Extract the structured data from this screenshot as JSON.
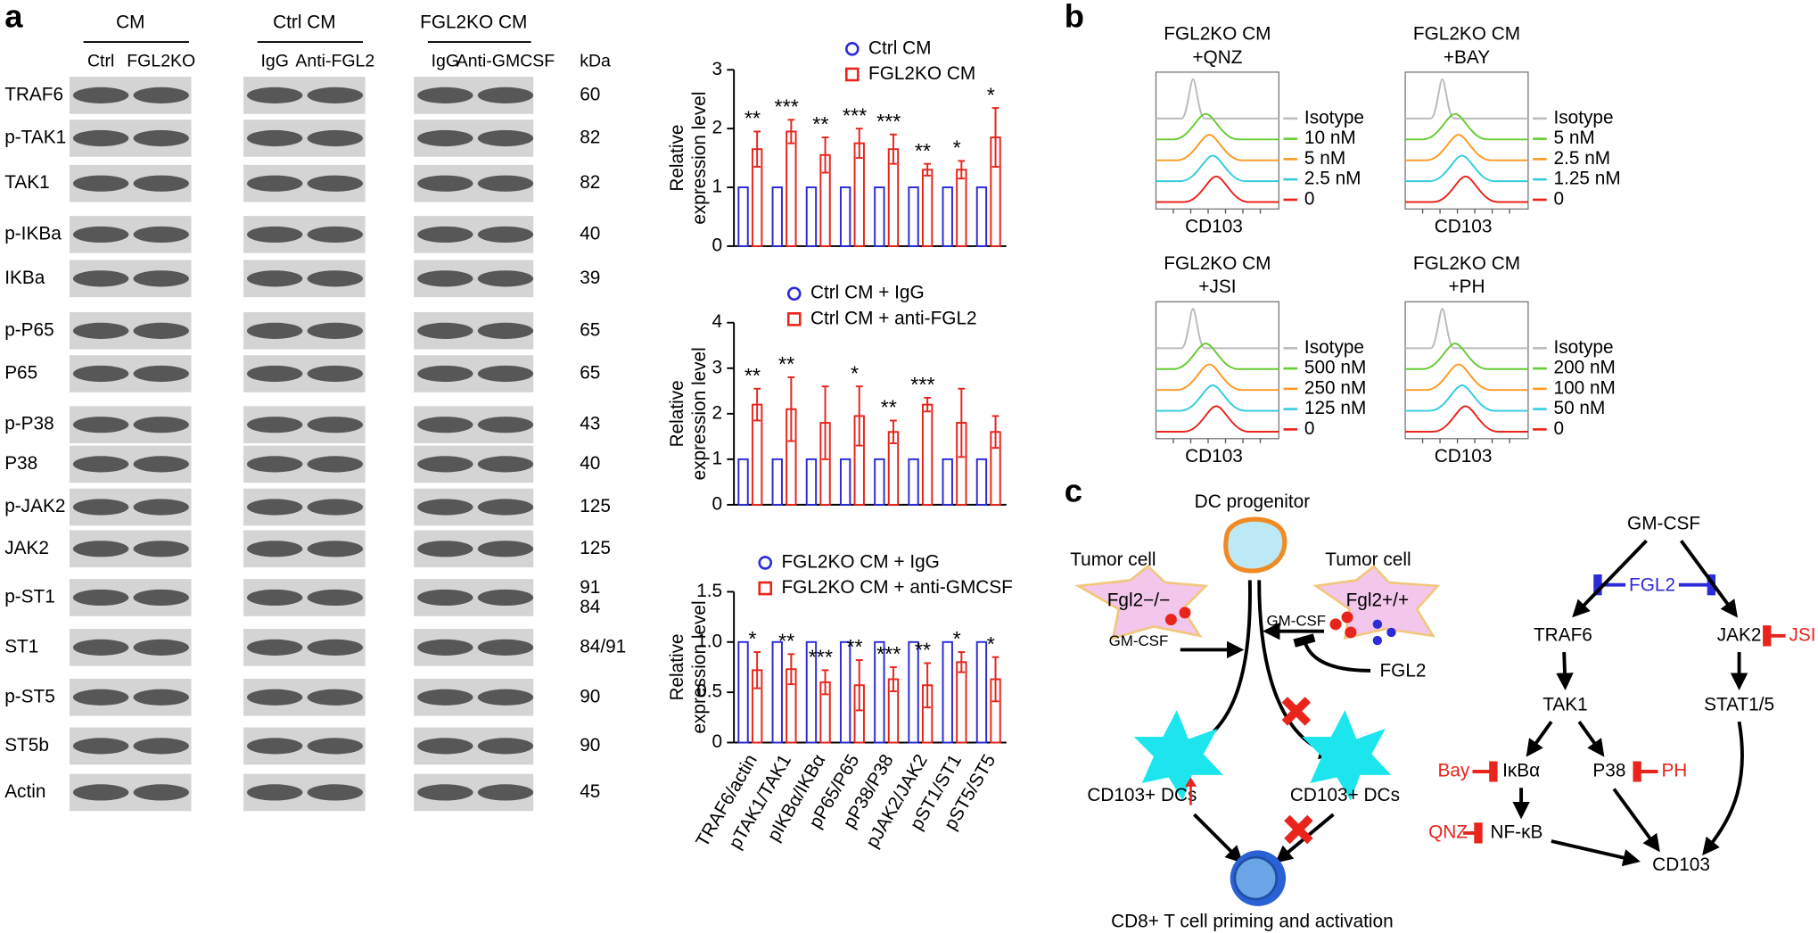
{
  "panel_labels": [
    "a",
    "b",
    "c"
  ],
  "blot": {
    "groups": [
      {
        "name": "CM",
        "lanes": [
          "Ctrl",
          "FGL2KO"
        ]
      },
      {
        "name": "Ctrl CM",
        "lanes": [
          "IgG",
          "Anti-FGL2"
        ]
      },
      {
        "name": "FGL2KO CM",
        "lanes": [
          "IgG",
          "Anti-GMCSF"
        ]
      }
    ],
    "kda_header": "kDa",
    "rows": [
      {
        "label": "TRAF6",
        "kda": [
          "60"
        ]
      },
      {
        "label": "p-TAK1",
        "kda": [
          "82"
        ]
      },
      {
        "label": "TAK1",
        "kda": [
          "82"
        ]
      },
      {
        "label": "p-IKBa",
        "kda": [
          "40"
        ]
      },
      {
        "label": "IKBa",
        "kda": [
          "39"
        ]
      },
      {
        "label": "p-P65",
        "kda": [
          "65"
        ]
      },
      {
        "label": "P65",
        "kda": [
          "65"
        ]
      },
      {
        "label": "p-P38",
        "kda": [
          "43"
        ]
      },
      {
        "label": "P38",
        "kda": [
          "40"
        ]
      },
      {
        "label": "p-JAK2",
        "kda": [
          "125"
        ]
      },
      {
        "label": "JAK2",
        "kda": [
          "125"
        ]
      },
      {
        "label": "p-ST1",
        "kda": [
          "91",
          "84"
        ]
      },
      {
        "label": "ST1",
        "kda": [
          "84/91"
        ]
      },
      {
        "label": "p-ST5",
        "kda": [
          "90"
        ]
      },
      {
        "label": "ST5b",
        "kda": [
          "90"
        ]
      },
      {
        "label": "Actin",
        "kda": [
          "45"
        ]
      }
    ]
  },
  "chart_data": [
    {
      "type": "bar",
      "y_label": [
        "Relative",
        "expression level"
      ],
      "ylim": [
        0,
        3
      ],
      "yticks": [
        0,
        1,
        2,
        3
      ],
      "series": [
        {
          "name": "Ctrl CM",
          "color": "#2b2bd8",
          "values": [
            1,
            1,
            1,
            1,
            1,
            1,
            1,
            1
          ]
        },
        {
          "name": "FGL2KO CM",
          "color": "#e8241c",
          "values": [
            1.65,
            1.95,
            1.55,
            1.75,
            1.65,
            1.3,
            1.3,
            1.85
          ],
          "errors": [
            0.3,
            0.2,
            0.3,
            0.25,
            0.25,
            0.1,
            0.15,
            0.5
          ]
        }
      ],
      "significance": [
        "**",
        "***",
        "**",
        "***",
        "***",
        "**",
        "*",
        "*"
      ]
    },
    {
      "type": "bar",
      "y_label": [
        "Relative",
        "expression level"
      ],
      "ylim": [
        0,
        4
      ],
      "yticks": [
        0,
        1,
        2,
        3,
        4
      ],
      "series": [
        {
          "name": "Ctrl CM + IgG",
          "color": "#2b2bd8",
          "values": [
            1,
            1,
            1,
            1,
            1,
            1,
            1,
            1
          ]
        },
        {
          "name": "Ctrl CM + anti-FGL2",
          "color": "#e8241c",
          "values": [
            2.2,
            2.1,
            1.8,
            1.95,
            1.6,
            2.2,
            1.8,
            1.6
          ],
          "errors": [
            0.35,
            0.7,
            0.8,
            0.65,
            0.25,
            0.15,
            0.75,
            0.35
          ]
        }
      ],
      "significance": [
        "**",
        "**",
        null,
        "*",
        "**",
        "***",
        null,
        null
      ]
    },
    {
      "type": "bar",
      "y_label": [
        "Relative",
        "expression level"
      ],
      "ylim": [
        0,
        1.5
      ],
      "yticks": [
        0,
        0.5,
        {
          "value": 1,
          "label": "1.0"
        },
        1.5
      ],
      "categories": [
        "TRAF6/actin",
        "pTAK1/TAK1",
        "pIKBα/IKBα",
        "pP65/P65",
        "pP38/P38",
        "pJAK2/JAK2",
        "pST1/ST1",
        "pST5/ST5"
      ],
      "series": [
        {
          "name": "FGL2KO CM + IgG",
          "color": "#2b2bd8",
          "values": [
            1,
            1,
            1,
            1,
            1,
            1,
            1,
            1
          ]
        },
        {
          "name": "FGL2KO CM + anti-GMCSF",
          "color": "#e8241c",
          "values": [
            0.72,
            0.73,
            0.6,
            0.57,
            0.63,
            0.57,
            0.8,
            0.63
          ],
          "errors": [
            0.18,
            0.15,
            0.12,
            0.25,
            0.12,
            0.22,
            0.1,
            0.22
          ]
        }
      ],
      "significance": [
        "*",
        "**",
        "***",
        "**",
        "***",
        "**",
        "*",
        "*"
      ]
    }
  ],
  "flow": [
    {
      "title": [
        "FGL2KO CM",
        "+QNZ"
      ],
      "legend": [
        "Isotype",
        "10 nM",
        "5 nM",
        "2.5 nM",
        "0"
      ],
      "x_label": "CD103"
    },
    {
      "title": [
        "FGL2KO CM",
        "+BAY"
      ],
      "legend": [
        "Isotype",
        "5 nM",
        "2.5 nM",
        "1.25 nM",
        "0"
      ],
      "x_label": "CD103"
    },
    {
      "title": [
        "FGL2KO CM",
        "+JSI"
      ],
      "legend": [
        "Isotype",
        "500 nM",
        "250 nM",
        "125 nM",
        "0"
      ],
      "x_label": "CD103"
    },
    {
      "title": [
        "FGL2KO CM",
        "+PH"
      ],
      "legend": [
        "Isotype",
        "200 nM",
        "100 nM",
        "50 nM",
        "0"
      ],
      "x_label": "CD103"
    }
  ],
  "diagram": {
    "progenitor": "DC progenitor",
    "tumor_left": "Tumor cell",
    "tumor_left_genotype": "Fgl2−/−",
    "gmcsf_left": "GM-CSF",
    "tumor_right": "Tumor cell",
    "tumor_right_genotype": "Fgl2+/+",
    "gmcsf_right": "GM-CSF",
    "fgl2": "FGL2",
    "dc_left": "CD103+ DCs",
    "dc_right": "CD103+ DCs",
    "tcell": "CD8+ T cell priming and activation"
  },
  "pathway": {
    "gmcsf": "GM-CSF",
    "fgl2": "FGL2",
    "traf6": "TRAF6",
    "jak2": "JAK2",
    "jsi": "JSI",
    "tak1": "TAK1",
    "stat": "STAT1/5",
    "bay": "Bay",
    "ikba": "IκBα",
    "p38": "P38",
    "ph": "PH",
    "qnz": "QNZ",
    "nfkb": "NF-κB",
    "cd103": "CD103"
  }
}
